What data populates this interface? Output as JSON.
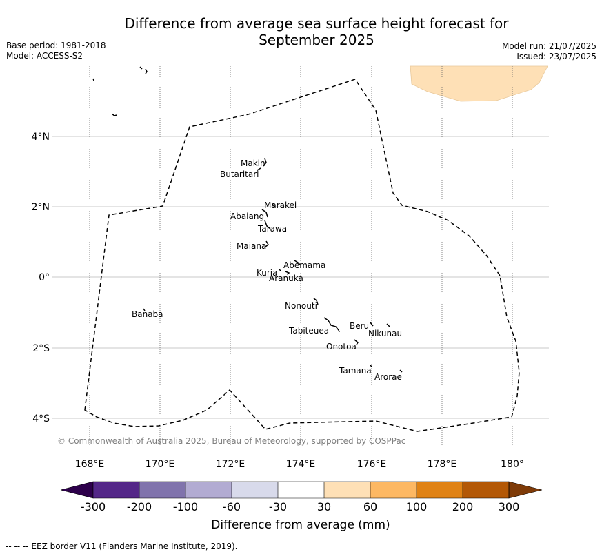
{
  "title_line1": "Difference from average sea surface height forecast for",
  "title_line2": "September 2025",
  "base_period": "Base period: 1981-2018",
  "model": "Model: ACCESS-S2",
  "model_run": "Model run: 21/07/2025",
  "issued": "Issued: 23/07/2025",
  "copyright": "© Commonwealth of Australia 2025, Bureau of Meteorology, supported by COSPPac",
  "footer": "--  --  -- EEZ border V11 (Flanders Marine Institute, 2019).",
  "lon_labels": [
    "168°E",
    "170°E",
    "172°E",
    "174°E",
    "176°E",
    "178°E",
    "180°"
  ],
  "lat_labels": [
    "4°N",
    "2°N",
    "0°",
    "2°S",
    "4°S"
  ],
  "islands": [
    {
      "name": "Makin"
    },
    {
      "name": "Butaritari"
    },
    {
      "name": "Marakei"
    },
    {
      "name": "Abaiang"
    },
    {
      "name": "Tarawa"
    },
    {
      "name": "Maiana"
    },
    {
      "name": "Abemama"
    },
    {
      "name": "Kuria"
    },
    {
      "name": "Aranuka"
    },
    {
      "name": "Banaba"
    },
    {
      "name": "Nonouti"
    },
    {
      "name": "Beru"
    },
    {
      "name": "Tabiteuea"
    },
    {
      "name": "Nikunau"
    },
    {
      "name": "Onotoa"
    },
    {
      "name": "Tamana"
    },
    {
      "name": "Arorae"
    }
  ],
  "colorbar": {
    "label": "Difference from average (mm)",
    "ticks": [
      "-300",
      "-200",
      "-100",
      "-60",
      "-30",
      "30",
      "60",
      "100",
      "200",
      "300"
    ],
    "under_color": "#2d004b",
    "over_color": "#7f3b08",
    "colors": [
      "#542788",
      "#8073ac",
      "#b2abd2",
      "#d8daeb",
      "#ffffff",
      "#fee0b6",
      "#fdb863",
      "#e08214",
      "#b35806"
    ]
  },
  "forecast_fill_color": "#fee0b6"
}
